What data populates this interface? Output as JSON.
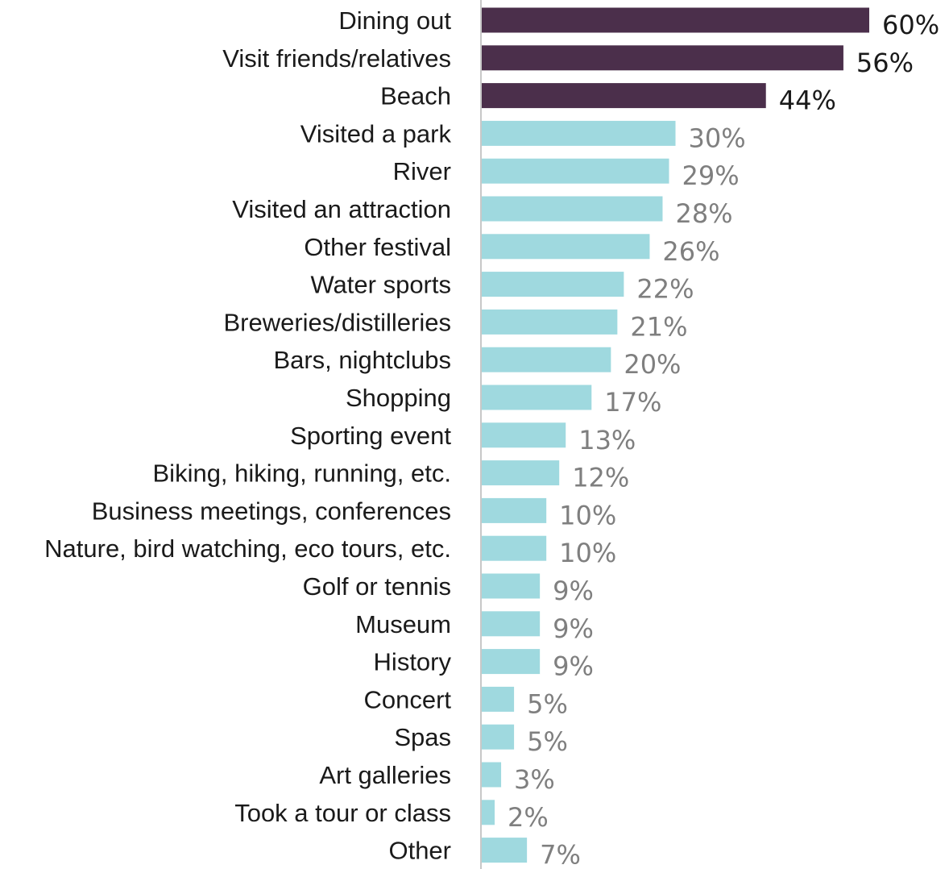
{
  "chart_data": {
    "type": "bar",
    "orientation": "horizontal",
    "title": "",
    "xlabel": "",
    "ylabel": "",
    "xlim": [
      0,
      60
    ],
    "grid": false,
    "categories": [
      "Dining out",
      "Visit friends/relatives",
      "Beach",
      "Visited a park",
      "River",
      "Visited an attraction",
      "Other festival",
      "Water sports",
      "Breweries/distilleries",
      "Bars, nightclubs",
      "Shopping",
      "Sporting event",
      "Biking, hiking, running, etc.",
      "Business meetings, conferences",
      "Nature, bird watching, eco tours, etc.",
      "Golf or tennis",
      "Museum",
      "History",
      "Concert",
      "Spas",
      "Art galleries",
      "Took a tour or class",
      "Other"
    ],
    "values": [
      60,
      56,
      44,
      30,
      29,
      28,
      26,
      22,
      21,
      20,
      17,
      13,
      12,
      10,
      10,
      9,
      9,
      9,
      5,
      5,
      3,
      2,
      7
    ],
    "data_labels": [
      "60%",
      "56%",
      "44%",
      "30%",
      "29%",
      "28%",
      "26%",
      "22%",
      "21%",
      "20%",
      "17%",
      "13%",
      "12%",
      "10%",
      "10%",
      "9%",
      "9%",
      "9%",
      "5%",
      "5%",
      "3%",
      "2%",
      "7%"
    ],
    "highlight_top": 3,
    "colors": {
      "highlight_bar": "#4b2f4b",
      "bar": "#9fd9df",
      "highlight_label": "#1a1a1a",
      "label": "#7f7f7f",
      "axis": "#c8c8c8"
    }
  }
}
